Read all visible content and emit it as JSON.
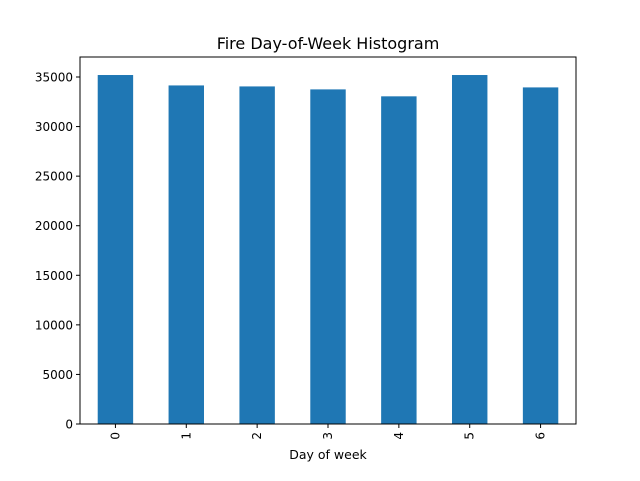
{
  "chart_data": {
    "type": "bar",
    "title": "Fire Day-of-Week Histogram",
    "xlabel": "Day of week",
    "ylabel": "",
    "categories": [
      "0",
      "1",
      "2",
      "3",
      "4",
      "5",
      "6"
    ],
    "values": [
      35200,
      34150,
      34050,
      33750,
      33050,
      35200,
      33950
    ],
    "ylim": [
      0,
      35000
    ],
    "yticks": [
      0,
      5000,
      10000,
      15000,
      20000,
      25000,
      30000,
      35000
    ],
    "ytick_labels": [
      "0",
      "5000",
      "10000",
      "15000",
      "20000",
      "25000",
      "30000",
      "35000"
    ],
    "bar_color": "#1f77b4",
    "grid": false,
    "legend": "none"
  }
}
